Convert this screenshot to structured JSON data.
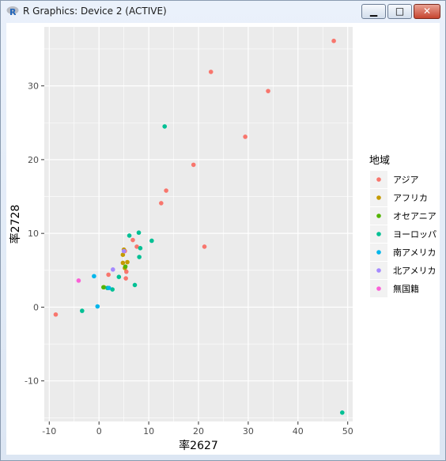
{
  "window": {
    "title": "R Graphics: Device 2 (ACTIVE)",
    "controls": {
      "minimize": "▁",
      "maximize": "□",
      "close": "✕"
    }
  },
  "chart_data": {
    "type": "scatter",
    "xlabel": "率2627",
    "ylabel": "率2728",
    "xlim": [
      -11,
      51
    ],
    "ylim": [
      -15.5,
      38
    ],
    "xticks": [
      -10,
      0,
      10,
      20,
      30,
      40,
      50
    ],
    "yticks": [
      -10,
      0,
      10,
      20,
      30
    ],
    "xtick_labels": [
      "-10",
      "0",
      "10",
      "20",
      "30",
      "40",
      "50"
    ],
    "ytick_labels": [
      "-10",
      "0",
      "10",
      "20",
      "30"
    ],
    "grid": true,
    "legend_title": "地域",
    "legend_position": "right",
    "series": [
      {
        "name": "アジア",
        "color": "#F8766D",
        "points": [
          [
            -8.7,
            -1.0
          ],
          [
            1.9,
            4.4
          ],
          [
            5.4,
            3.9
          ],
          [
            5.5,
            4.8
          ],
          [
            5.2,
            7.6
          ],
          [
            6.8,
            9.1
          ],
          [
            7.6,
            8.2
          ],
          [
            12.5,
            14.1
          ],
          [
            13.5,
            15.8
          ],
          [
            19.0,
            19.3
          ],
          [
            21.2,
            8.2
          ],
          [
            22.5,
            31.9
          ],
          [
            29.4,
            23.1
          ],
          [
            34.0,
            29.3
          ],
          [
            47.2,
            36.1
          ]
        ]
      },
      {
        "name": "アフリカ",
        "color": "#C49A00",
        "points": [
          [
            1.0,
            2.7
          ],
          [
            4.8,
            6.0
          ],
          [
            4.8,
            7.1
          ],
          [
            5.2,
            5.3
          ],
          [
            5.0,
            7.8
          ],
          [
            5.7,
            6.1
          ]
        ]
      },
      {
        "name": "オセアニア",
        "color": "#53B400",
        "points": [
          [
            0.9,
            2.7
          ],
          [
            5.3,
            5.5
          ]
        ]
      },
      {
        "name": "ヨーロッパ",
        "color": "#00C094",
        "points": [
          [
            -3.4,
            -0.5
          ],
          [
            1.7,
            2.6
          ],
          [
            2.7,
            2.4
          ],
          [
            4.0,
            4.1
          ],
          [
            6.1,
            9.7
          ],
          [
            7.2,
            3.0
          ],
          [
            8.0,
            10.1
          ],
          [
            8.1,
            6.8
          ],
          [
            8.3,
            8.0
          ],
          [
            10.6,
            9.0
          ],
          [
            13.2,
            24.5
          ],
          [
            48.9,
            -14.3
          ]
        ]
      },
      {
        "name": "南アメリカ",
        "color": "#00B6EB",
        "points": [
          [
            -0.3,
            0.1
          ],
          [
            -1.0,
            4.2
          ],
          [
            2.0,
            2.6
          ]
        ]
      },
      {
        "name": "北アメリカ",
        "color": "#A58AFF",
        "points": [
          [
            2.8,
            5.1
          ],
          [
            5.0,
            7.6
          ]
        ]
      },
      {
        "name": "無国籍",
        "color": "#FB61D7",
        "points": [
          [
            -4.1,
            3.6
          ]
        ]
      }
    ]
  }
}
